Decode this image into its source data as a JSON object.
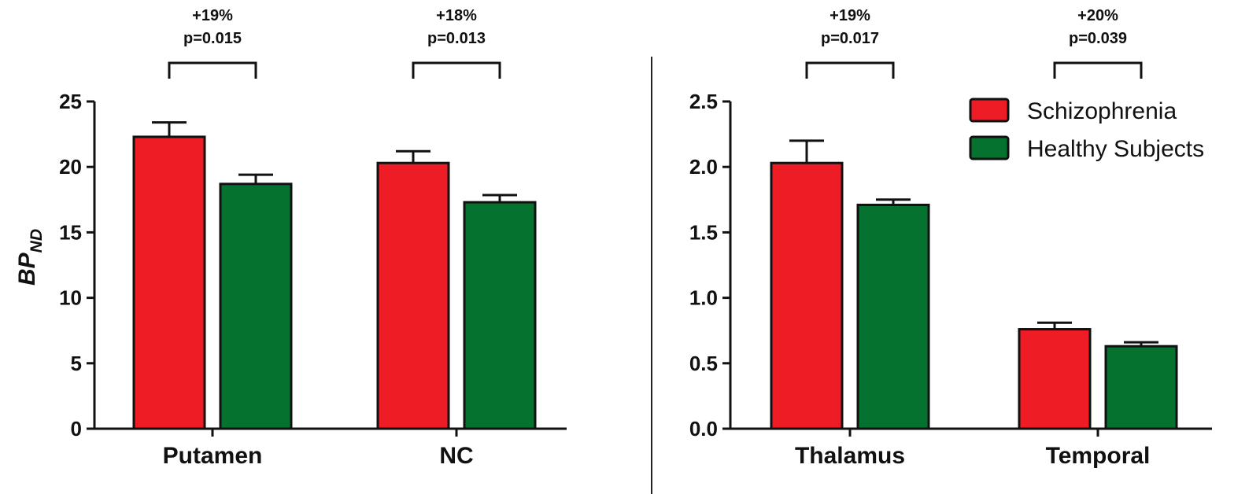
{
  "colors": {
    "schizophrenia": "#ee1c25",
    "healthy": "#05722f",
    "axis": "#111111",
    "divider": "#222222"
  },
  "legend": {
    "position": "top-right of right panel",
    "entries": [
      "Schizophrenia",
      "Healthy Subjects"
    ]
  },
  "chart_data": [
    {
      "type": "bar",
      "panel": "left",
      "title": "",
      "ylabel": "BP",
      "ylabel_subscript": "ND",
      "xlabel": "",
      "ylim": [
        0,
        25
      ],
      "yticks": [
        "0",
        "5",
        "10",
        "15",
        "20",
        "25"
      ],
      "ytick_values": [
        0,
        5,
        10,
        15,
        20,
        25
      ],
      "categories": [
        "Putamen",
        "NC"
      ],
      "series": [
        {
          "name": "Schizophrenia",
          "values": [
            22.3,
            20.3
          ],
          "errors": [
            1.1,
            0.9
          ]
        },
        {
          "name": "Healthy Subjects",
          "values": [
            18.7,
            17.3
          ],
          "errors": [
            0.7,
            0.55
          ]
        }
      ],
      "annotations": [
        {
          "category": "Putamen",
          "change": "+19%",
          "p": "p=0.015"
        },
        {
          "category": "NC",
          "change": "+18%",
          "p": "p=0.013"
        }
      ],
      "grid": false
    },
    {
      "type": "bar",
      "panel": "right",
      "title": "",
      "ylabel": "",
      "xlabel": "",
      "ylim": [
        0,
        2.5
      ],
      "yticks": [
        "0.0",
        "0.5",
        "1.0",
        "1.5",
        "2.0",
        "2.5"
      ],
      "ytick_values": [
        0,
        0.5,
        1.0,
        1.5,
        2.0,
        2.5
      ],
      "categories": [
        "Thalamus",
        "Temporal"
      ],
      "series": [
        {
          "name": "Schizophrenia",
          "values": [
            2.03,
            0.76
          ],
          "errors": [
            0.17,
            0.05
          ]
        },
        {
          "name": "Healthy Subjects",
          "values": [
            1.71,
            0.63
          ],
          "errors": [
            0.04,
            0.03
          ]
        }
      ],
      "annotations": [
        {
          "category": "Thalamus",
          "change": "+19%",
          "p": "p=0.017"
        },
        {
          "category": "Temporal",
          "change": "+20%",
          "p": "p=0.039"
        }
      ],
      "grid": false
    }
  ]
}
